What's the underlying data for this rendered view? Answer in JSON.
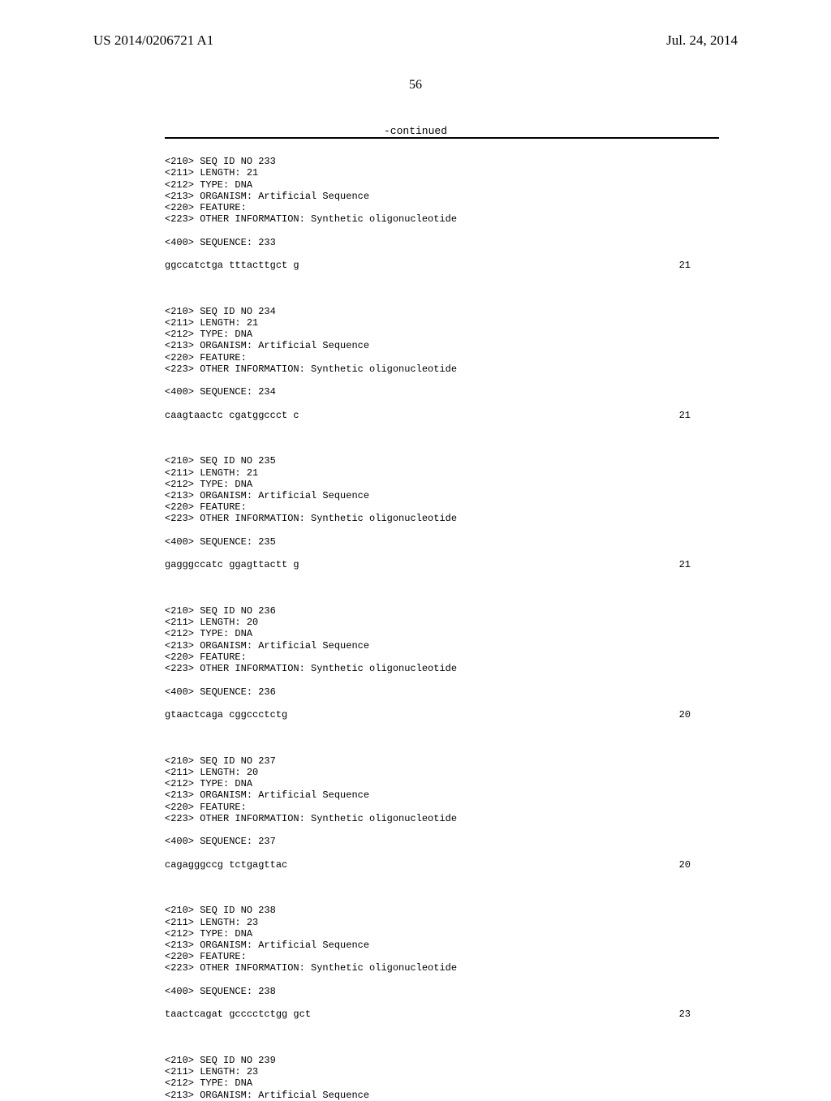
{
  "header": {
    "pub_number": "US 2014/0206721 A1",
    "pub_date": "Jul. 24, 2014"
  },
  "page_number": "56",
  "continued_label": "-continued",
  "sequences": [
    {
      "id_line": "<210> SEQ ID NO 233",
      "length_line": "<211> LENGTH: 21",
      "type_line": "<212> TYPE: DNA",
      "organism_line": "<213> ORGANISM: Artificial Sequence",
      "feature_line": "<220> FEATURE:",
      "other_line": "<223> OTHER INFORMATION: Synthetic oligonucleotide",
      "seq_header": "<400> SEQUENCE: 233",
      "sequence": "ggccatctga tttacttgct g",
      "length_val": "21"
    },
    {
      "id_line": "<210> SEQ ID NO 234",
      "length_line": "<211> LENGTH: 21",
      "type_line": "<212> TYPE: DNA",
      "organism_line": "<213> ORGANISM: Artificial Sequence",
      "feature_line": "<220> FEATURE:",
      "other_line": "<223> OTHER INFORMATION: Synthetic oligonucleotide",
      "seq_header": "<400> SEQUENCE: 234",
      "sequence": "caagtaactc cgatggccct c",
      "length_val": "21"
    },
    {
      "id_line": "<210> SEQ ID NO 235",
      "length_line": "<211> LENGTH: 21",
      "type_line": "<212> TYPE: DNA",
      "organism_line": "<213> ORGANISM: Artificial Sequence",
      "feature_line": "<220> FEATURE:",
      "other_line": "<223> OTHER INFORMATION: Synthetic oligonucleotide",
      "seq_header": "<400> SEQUENCE: 235",
      "sequence": "gagggccatc ggagttactt g",
      "length_val": "21"
    },
    {
      "id_line": "<210> SEQ ID NO 236",
      "length_line": "<211> LENGTH: 20",
      "type_line": "<212> TYPE: DNA",
      "organism_line": "<213> ORGANISM: Artificial Sequence",
      "feature_line": "<220> FEATURE:",
      "other_line": "<223> OTHER INFORMATION: Synthetic oligonucleotide",
      "seq_header": "<400> SEQUENCE: 236",
      "sequence": "gtaactcaga cggccctctg",
      "length_val": "20"
    },
    {
      "id_line": "<210> SEQ ID NO 237",
      "length_line": "<211> LENGTH: 20",
      "type_line": "<212> TYPE: DNA",
      "organism_line": "<213> ORGANISM: Artificial Sequence",
      "feature_line": "<220> FEATURE:",
      "other_line": "<223> OTHER INFORMATION: Synthetic oligonucleotide",
      "seq_header": "<400> SEQUENCE: 237",
      "sequence": "cagagggccg tctgagttac",
      "length_val": "20"
    },
    {
      "id_line": "<210> SEQ ID NO 238",
      "length_line": "<211> LENGTH: 23",
      "type_line": "<212> TYPE: DNA",
      "organism_line": "<213> ORGANISM: Artificial Sequence",
      "feature_line": "<220> FEATURE:",
      "other_line": "<223> OTHER INFORMATION: Synthetic oligonucleotide",
      "seq_header": "<400> SEQUENCE: 238",
      "sequence": "taactcagat gcccctctgg gct",
      "length_val": "23"
    }
  ],
  "partial_sequence": {
    "id_line": "<210> SEQ ID NO 239",
    "length_line": "<211> LENGTH: 23",
    "type_line": "<212> TYPE: DNA",
    "organism_line": "<213> ORGANISM: Artificial Sequence"
  }
}
